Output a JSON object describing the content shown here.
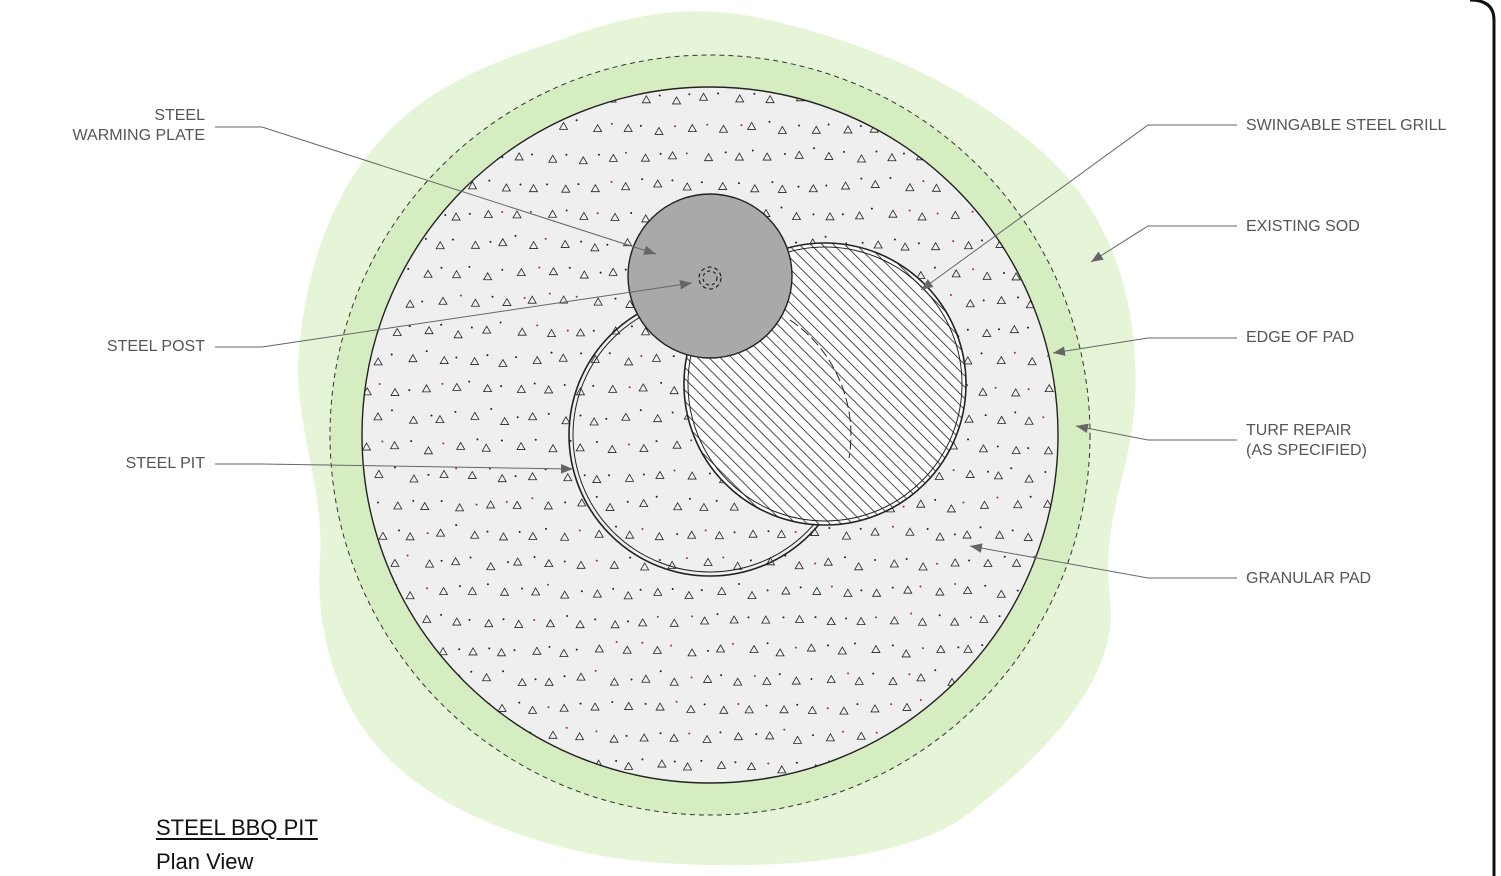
{
  "colors": {
    "sod": "#e6f4d8",
    "turf_repair": "#d6edc2",
    "pad_fill": "#efefef",
    "warming_plate": "#a9a9a9",
    "outline": "#222222",
    "leader": "#555555",
    "label_text": "#555555"
  },
  "labels": {
    "warming_plate_line1": "STEEL",
    "warming_plate_line2": "WARMING PLATE",
    "steel_post": "STEEL POST",
    "steel_pit": "STEEL PIT",
    "swingable_grill": "SWINGABLE STEEL GRILL",
    "existing_sod": "EXISTING SOD",
    "edge_of_pad": "EDGE OF PAD",
    "turf_repair_line1": "TURF REPAIR",
    "turf_repair_line2": "(AS SPECIFIED)",
    "granular_pad": "GRANULAR PAD"
  },
  "title": {
    "main": "STEEL BBQ PIT",
    "sub": "Plan View"
  },
  "icons": {
    "steel_post": "dashed-circle-icon"
  }
}
